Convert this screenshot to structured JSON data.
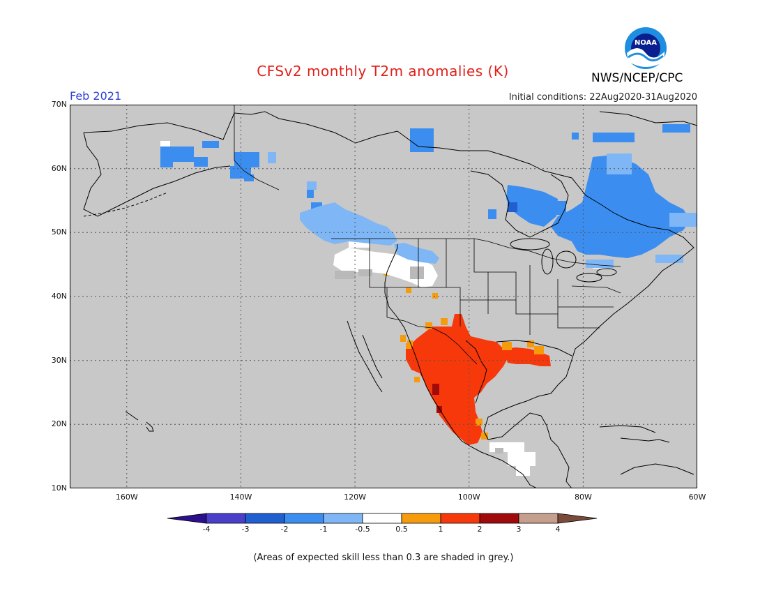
{
  "title": "CFSv2 monthly T2m anomalies (K)",
  "org": "NWS/NCEP/CPC",
  "logo_text": "NOAA",
  "forecast_month": "Feb 2021",
  "initial_conditions": "Initial conditions: 22Aug2020-31Aug2020",
  "footnote": "(Areas of expected skill less than 0.3 are shaded in grey.)",
  "lat_labels": [
    "70N",
    "60N",
    "50N",
    "40N",
    "30N",
    "20N",
    "10N"
  ],
  "lon_labels": [
    "160W",
    "140W",
    "120W",
    "100W",
    "80W",
    "60W"
  ],
  "colorbar": {
    "labels": [
      "-4",
      "-3",
      "-2",
      "-1",
      "-0.5",
      "0.5",
      "1",
      "2",
      "3",
      "4"
    ],
    "colors": [
      "#2b0f8c",
      "#4a3fc9",
      "#1f5fcf",
      "#3b8ef0",
      "#7fb6f5",
      "#ffffff",
      "#f59b0c",
      "#f7380a",
      "#a00a0a",
      "#c59e8e",
      "#7a4a3a"
    ]
  },
  "colors": {
    "skill_grey": "#c8c8c8",
    "coast": "#000000",
    "title_red": "#e0201a",
    "month_blue": "#2a3fd6"
  }
}
